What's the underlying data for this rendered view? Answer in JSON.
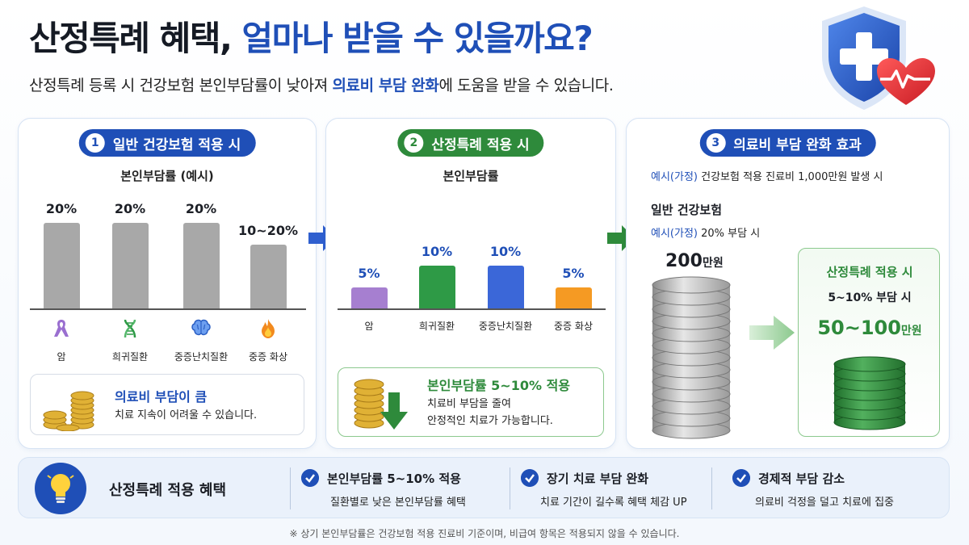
{
  "header": {
    "title_dark": "산정특례 혜택,",
    "title_blue": "얼마나 받을 수 있을까요?",
    "subtitle_pre": "산정특례 등록 시 건강보험 본인부담률이 낮아져 ",
    "subtitle_hl": "의료비 부담 완화",
    "subtitle_post": "에 도움을 받을 수 있습니다."
  },
  "panel1": {
    "num": "1",
    "pill": "일반 건강보험 적용 시",
    "sub": "본인부담률 (예시)",
    "bars": [
      {
        "value_label": "20%",
        "value": 20,
        "category": "암",
        "icon": "ribbon-icon"
      },
      {
        "value_label": "20%",
        "value": 20,
        "category": "희귀질환",
        "icon": "dna-icon"
      },
      {
        "value_label": "20%",
        "value": 20,
        "category": "중증난치질환",
        "icon": "brain-icon"
      },
      {
        "value_label": "10~20%",
        "value": 15,
        "category": "중증 화상",
        "icon": "flame-icon"
      }
    ],
    "card_head": "의료비 부담이 큼",
    "card_text": "치료 지속이 어려울 수 있습니다."
  },
  "panel2": {
    "num": "2",
    "pill": "산정특례 적용 시",
    "sub": "본인부담률",
    "bars": [
      {
        "value_label": "5%",
        "value": 5,
        "category": "암",
        "color": "#a67fd0"
      },
      {
        "value_label": "10%",
        "value": 10,
        "category": "희귀질환",
        "color": "#2e9a46"
      },
      {
        "value_label": "10%",
        "value": 10,
        "category": "중증난치질환",
        "color": "#3b67d8"
      },
      {
        "value_label": "5%",
        "value": 5,
        "category": "중증 화상",
        "color": "#f59a23"
      }
    ],
    "card_head": "본인부담률 5~10% 적용",
    "card_text1": "치료비 부담을 줄여",
    "card_text2": "안정적인 치료가 가능합니다."
  },
  "panel3": {
    "num": "3",
    "pill": "의료비 부담 완화 효과",
    "example_blue": "예시(가정)",
    "example_text": " 건강보험 적용 진료비 1,000만원 발생 시",
    "general_title": "일반 건강보험",
    "general_blue": "예시(가정)",
    "general_text": " 20% 부담 시",
    "general_amount": "200",
    "general_unit": "만원",
    "special_title": "산정특례 적용 시",
    "special_rate": "5~10% 부담 시",
    "special_amount": "50~100",
    "special_unit": "만원"
  },
  "banner": {
    "title": "산정특례 적용 혜택",
    "benefits": [
      {
        "head": "본인부담률 5~10% 적용",
        "sub": "질환별로 낮은 본인부담률 혜택"
      },
      {
        "head": "장기 치료 부담 완화",
        "sub": "치료 기간이 길수록 혜택 체감 UP"
      },
      {
        "head": "경제적 부담 감소",
        "sub": "의료비 걱정을 덜고 치료에 집중"
      }
    ]
  },
  "footnote": "※ 상기 본인부담률은 건강보험 적용 진료비 기준이며, 비급여 항목은 적용되지 않을 수 있습니다.",
  "colors": {
    "blue": "#1f4fb7",
    "green": "#2e8a3b",
    "gray_bar": "#a8a8a8"
  }
}
